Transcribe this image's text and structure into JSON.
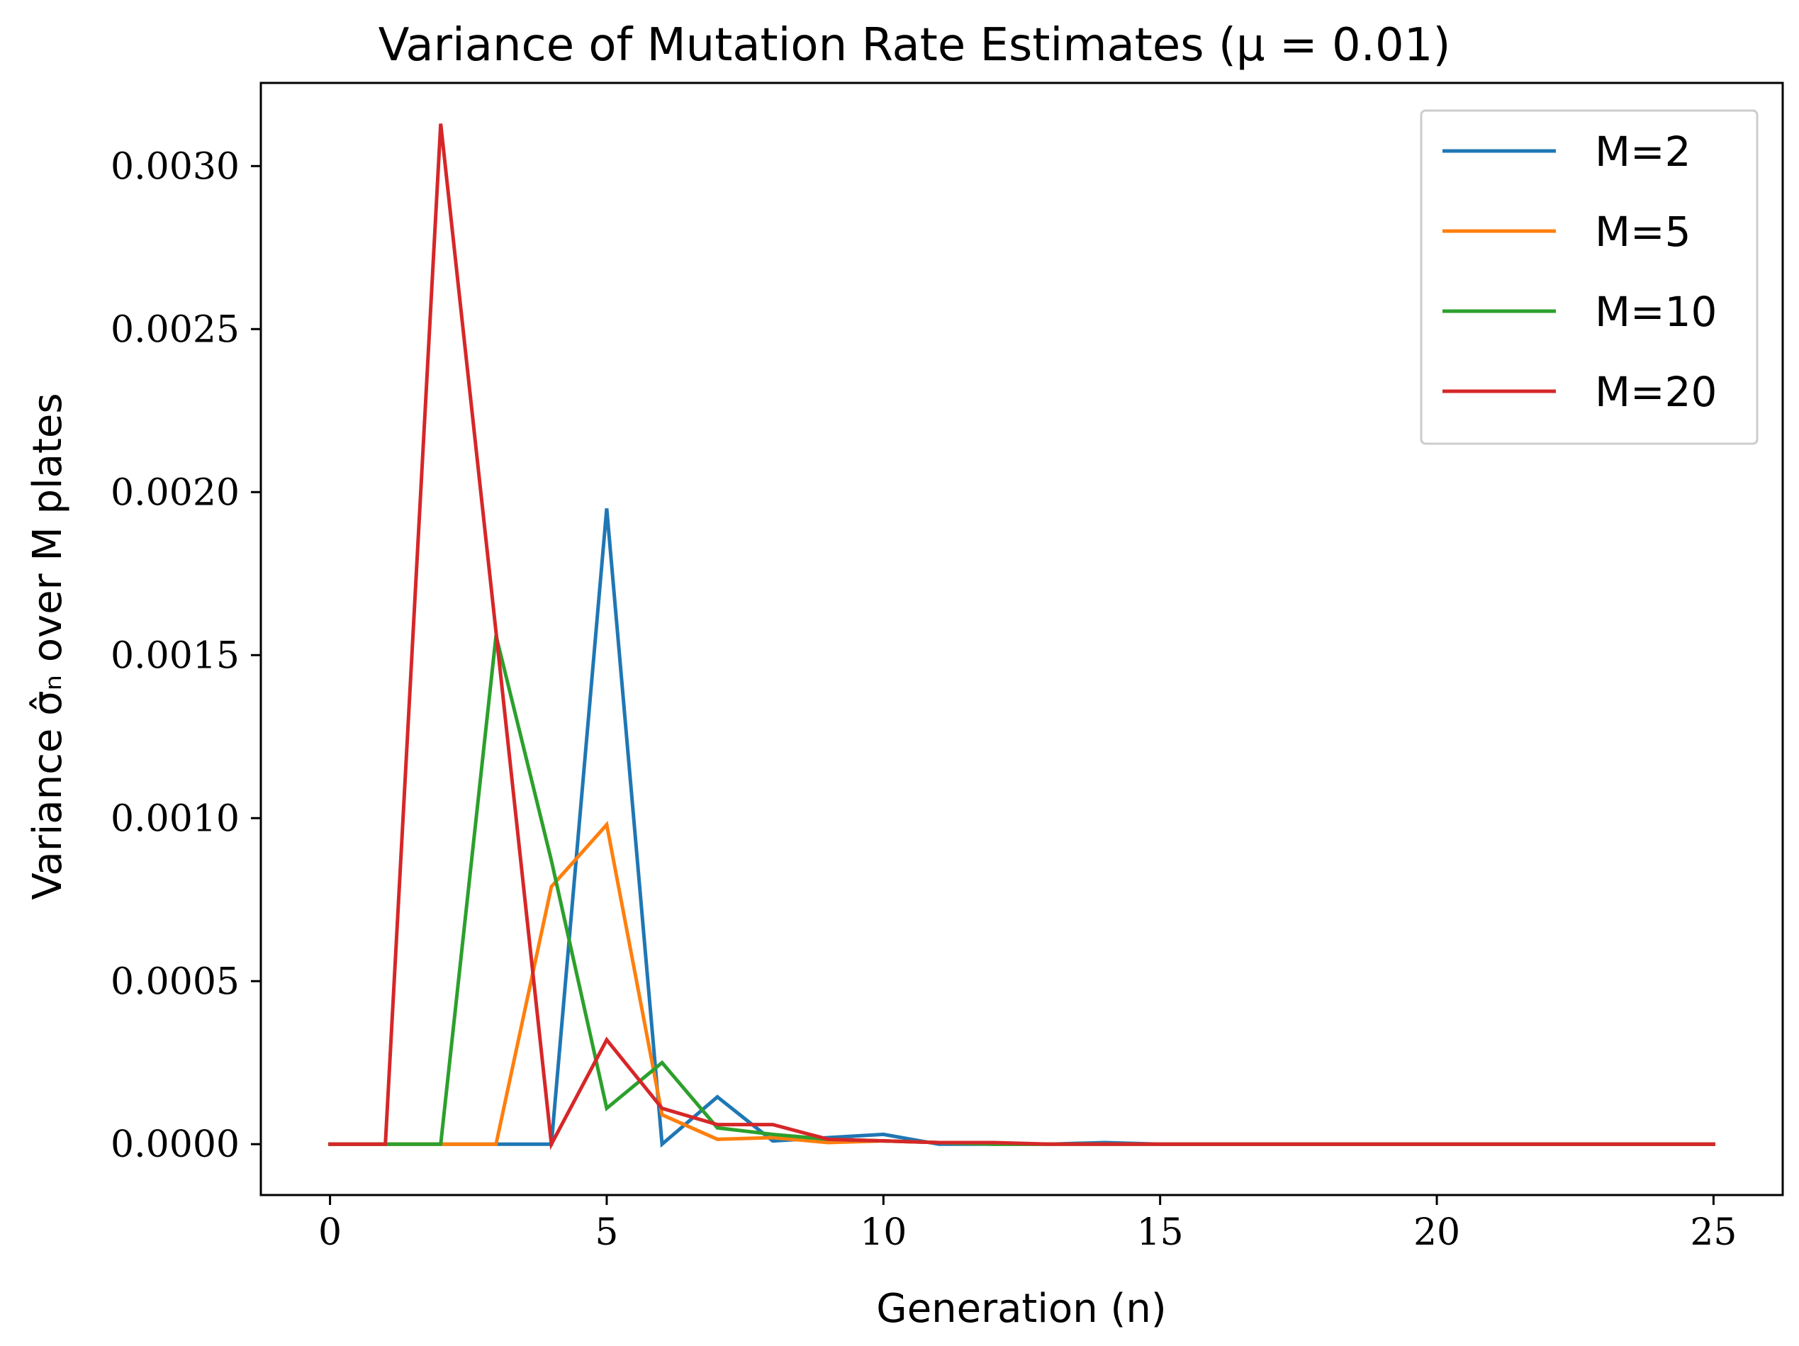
{
  "chart_data": {
    "type": "line",
    "title": "Variance of Mutation Rate Estimates (μ = 0.01)",
    "xlabel": "Generation (n)",
    "ylabel": "Variance σ̂ₙ over M plates",
    "xlim": [
      -1.25,
      26.25
    ],
    "ylim": [
      -0.000156,
      0.003255
    ],
    "xticks": [
      0,
      5,
      10,
      15,
      20,
      25
    ],
    "xtick_labels": [
      "0",
      "5",
      "10",
      "15",
      "20",
      "25"
    ],
    "yticks": [
      0,
      0.0005,
      0.001,
      0.0015,
      0.002,
      0.0025,
      0.003
    ],
    "ytick_labels": [
      "0.0000",
      "0.0005",
      "0.0010",
      "0.0015",
      "0.0020",
      "0.0025",
      "0.0030"
    ],
    "legend_position": "top-right",
    "x": [
      0,
      1,
      2,
      3,
      4,
      5,
      6,
      7,
      8,
      9,
      10,
      11,
      12,
      13,
      14,
      15,
      16,
      17,
      18,
      19,
      20,
      21,
      22,
      23,
      24,
      25
    ],
    "series": [
      {
        "name": "M=2",
        "color": "#1f77b4",
        "values": [
          0,
          0,
          0,
          0,
          0,
          0.00195,
          0,
          0.000145,
          1e-05,
          2e-05,
          3e-05,
          0,
          0,
          0,
          5e-06,
          0,
          0,
          0,
          0,
          0,
          0,
          0,
          0,
          0,
          0,
          0
        ]
      },
      {
        "name": "M=5",
        "color": "#ff7f0e",
        "values": [
          0,
          0,
          0,
          0,
          0.00079,
          0.00098,
          9e-05,
          1.5e-05,
          2e-05,
          5e-06,
          1e-05,
          5e-06,
          0,
          0,
          0,
          0,
          0,
          0,
          0,
          0,
          0,
          0,
          0,
          0,
          0,
          0
        ]
      },
      {
        "name": "M=10",
        "color": "#2ca02c",
        "values": [
          0,
          0,
          0,
          0.00156,
          0.00087,
          0.00011,
          0.00025,
          5e-05,
          3e-05,
          1.5e-05,
          1e-05,
          5e-06,
          0,
          0,
          0,
          0,
          0,
          0,
          0,
          0,
          0,
          0,
          0,
          0,
          0,
          0
        ]
      },
      {
        "name": "M=20",
        "color": "#d62728",
        "values": [
          0,
          0,
          0.00313,
          0.00157,
          0,
          0.00032,
          0.00011,
          6e-05,
          6e-05,
          1.5e-05,
          1e-05,
          5e-06,
          5e-06,
          0,
          0,
          0,
          0,
          0,
          0,
          0,
          0,
          0,
          0,
          0,
          0,
          0
        ]
      }
    ]
  }
}
